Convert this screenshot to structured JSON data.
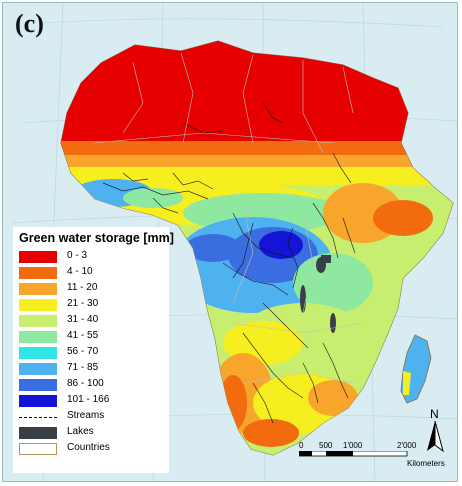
{
  "panel": {
    "label": "(c)"
  },
  "legend": {
    "title": "Green water storage [mm]",
    "classes": [
      {
        "label": "0 - 3",
        "color": "#e60000"
      },
      {
        "label": "4 - 10",
        "color": "#f26b0f"
      },
      {
        "label": "11 - 20",
        "color": "#f7a52b"
      },
      {
        "label": "21 - 30",
        "color": "#f7ee1f"
      },
      {
        "label": "31 - 40",
        "color": "#c7ee6f"
      },
      {
        "label": "41 - 55",
        "color": "#8fe8a0"
      },
      {
        "label": "56 - 70",
        "color": "#2fe5e5"
      },
      {
        "label": "71 - 85",
        "color": "#4fb2f0"
      },
      {
        "label": "86 - 100",
        "color": "#3a6ee0"
      },
      {
        "label": "101 - 166",
        "color": "#1414d6"
      }
    ],
    "symbols": {
      "streams": "Streams",
      "lakes": "Lakes",
      "countries": "Countries"
    }
  },
  "north_arrow": {
    "label": "N"
  },
  "scale": {
    "ticks": [
      "0",
      "500",
      "1'000",
      "2'000"
    ],
    "unit": "Kilometers"
  }
}
